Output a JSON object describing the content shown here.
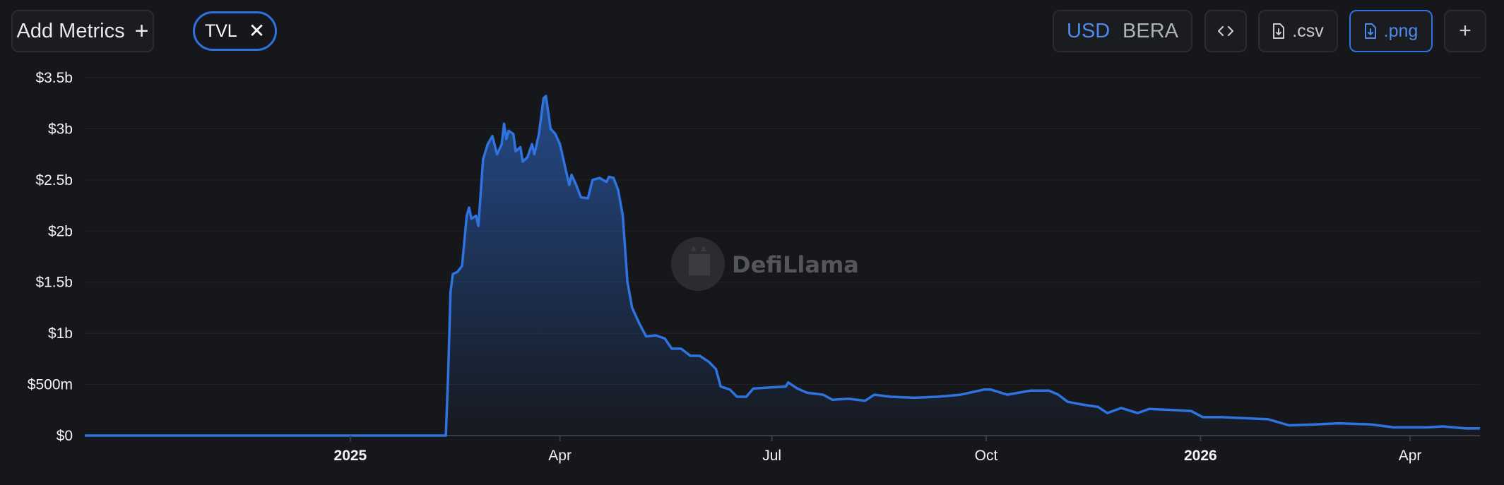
{
  "toolbar": {
    "add_metrics_label": "Add Metrics",
    "add_metrics_icon": "+",
    "chip_label": "TVL",
    "chip_close_icon": "✕",
    "currency_options": [
      "USD",
      "BERA"
    ],
    "currency_selected": "USD",
    "embed_icon": "<>",
    "csv_label": ".csv",
    "png_label": ".png",
    "add_icon": "+"
  },
  "watermark": "DefiLlama",
  "colors": {
    "background": "#16171b",
    "line": "#2f73e0",
    "grid": "#23252a"
  },
  "chart_data": {
    "type": "area",
    "series": [
      {
        "values": [
          [
            "2024-09-09",
            0
          ],
          [
            "2024-12-31",
            0
          ],
          [
            "2025-02-11",
            0
          ],
          [
            "2025-02-12",
            0.6
          ],
          [
            "2025-02-13",
            1.4
          ],
          [
            "2025-02-14",
            1.58
          ],
          [
            "2025-02-16",
            1.6
          ],
          [
            "2025-02-18",
            1.66
          ],
          [
            "2025-02-20",
            2.15
          ],
          [
            "2025-02-21",
            2.23
          ],
          [
            "2025-02-22",
            2.12
          ],
          [
            "2025-02-24",
            2.15
          ],
          [
            "2025-02-25",
            2.05
          ],
          [
            "2025-02-27",
            2.7
          ],
          [
            "2025-03-01",
            2.85
          ],
          [
            "2025-03-03",
            2.93
          ],
          [
            "2025-03-05",
            2.75
          ],
          [
            "2025-03-07",
            2.85
          ],
          [
            "2025-03-08",
            3.05
          ],
          [
            "2025-03-09",
            2.9
          ],
          [
            "2025-03-10",
            2.98
          ],
          [
            "2025-03-12",
            2.95
          ],
          [
            "2025-03-13",
            2.78
          ],
          [
            "2025-03-15",
            2.82
          ],
          [
            "2025-03-16",
            2.68
          ],
          [
            "2025-03-18",
            2.72
          ],
          [
            "2025-03-20",
            2.85
          ],
          [
            "2025-03-21",
            2.75
          ],
          [
            "2025-03-23",
            2.95
          ],
          [
            "2025-03-25",
            3.3
          ],
          [
            "2025-03-26",
            3.32
          ],
          [
            "2025-03-28",
            3.0
          ],
          [
            "2025-03-30",
            2.95
          ],
          [
            "2025-04-01",
            2.85
          ],
          [
            "2025-04-03",
            2.65
          ],
          [
            "2025-04-05",
            2.45
          ],
          [
            "2025-04-06",
            2.55
          ],
          [
            "2025-04-08",
            2.45
          ],
          [
            "2025-04-10",
            2.33
          ],
          [
            "2025-04-13",
            2.32
          ],
          [
            "2025-04-15",
            2.5
          ],
          [
            "2025-04-18",
            2.52
          ],
          [
            "2025-04-21",
            2.48
          ],
          [
            "2025-04-22",
            2.53
          ],
          [
            "2025-04-24",
            2.52
          ],
          [
            "2025-04-26",
            2.4
          ],
          [
            "2025-04-28",
            2.15
          ],
          [
            "2025-04-30",
            1.5
          ],
          [
            "2025-05-02",
            1.25
          ],
          [
            "2025-05-05",
            1.1
          ],
          [
            "2025-05-08",
            0.97
          ],
          [
            "2025-05-12",
            0.98
          ],
          [
            "2025-05-16",
            0.95
          ],
          [
            "2025-05-19",
            0.85
          ],
          [
            "2025-05-23",
            0.85
          ],
          [
            "2025-05-27",
            0.78
          ],
          [
            "2025-05-31",
            0.78
          ],
          [
            "2025-06-04",
            0.72
          ],
          [
            "2025-06-07",
            0.65
          ],
          [
            "2025-06-09",
            0.48
          ],
          [
            "2025-06-13",
            0.45
          ],
          [
            "2025-06-16",
            0.38
          ],
          [
            "2025-06-20",
            0.38
          ],
          [
            "2025-06-23",
            0.46
          ],
          [
            "2025-06-30",
            0.47
          ],
          [
            "2025-07-07",
            0.48
          ],
          [
            "2025-07-08",
            0.52
          ],
          [
            "2025-07-12",
            0.46
          ],
          [
            "2025-07-16",
            0.42
          ],
          [
            "2025-07-23",
            0.4
          ],
          [
            "2025-07-27",
            0.35
          ],
          [
            "2025-08-03",
            0.36
          ],
          [
            "2025-08-10",
            0.34
          ],
          [
            "2025-08-14",
            0.4
          ],
          [
            "2025-08-21",
            0.38
          ],
          [
            "2025-08-31",
            0.37
          ],
          [
            "2025-09-10",
            0.38
          ],
          [
            "2025-09-20",
            0.4
          ],
          [
            "2025-09-30",
            0.45
          ],
          [
            "2025-10-03",
            0.45
          ],
          [
            "2025-10-10",
            0.4
          ],
          [
            "2025-10-20",
            0.44
          ],
          [
            "2025-10-28",
            0.44
          ],
          [
            "2025-11-01",
            0.4
          ],
          [
            "2025-11-05",
            0.33
          ],
          [
            "2025-11-12",
            0.3
          ],
          [
            "2025-11-18",
            0.28
          ],
          [
            "2025-11-22",
            0.22
          ],
          [
            "2025-11-28",
            0.27
          ],
          [
            "2025-12-05",
            0.22
          ],
          [
            "2025-12-10",
            0.26
          ],
          [
            "2025-12-20",
            0.25
          ],
          [
            "2025-12-28",
            0.24
          ],
          [
            "2026-01-02",
            0.18
          ],
          [
            "2026-01-10",
            0.18
          ],
          [
            "2026-01-20",
            0.17
          ],
          [
            "2026-01-30",
            0.16
          ],
          [
            "2026-02-08",
            0.1
          ],
          [
            "2026-02-20",
            0.11
          ],
          [
            "2026-03-01",
            0.12
          ],
          [
            "2026-03-15",
            0.11
          ],
          [
            "2026-03-25",
            0.08
          ],
          [
            "2026-04-08",
            0.08
          ],
          [
            "2026-04-15",
            0.09
          ],
          [
            "2026-04-25",
            0.07
          ],
          [
            "2026-05-01",
            0.07
          ]
        ]
      }
    ],
    "x_ticks": [
      {
        "date": "2025-01-01",
        "label": "2025",
        "bold": true
      },
      {
        "date": "2025-04-01",
        "label": "Apr",
        "bold": false
      },
      {
        "date": "2025-07-01",
        "label": "Jul",
        "bold": false
      },
      {
        "date": "2025-10-01",
        "label": "Oct",
        "bold": false
      },
      {
        "date": "2026-01-01",
        "label": "2026",
        "bold": true
      },
      {
        "date": "2026-04-01",
        "label": "Apr",
        "bold": false
      }
    ],
    "y_ticks": [
      {
        "value": 0,
        "label": "$0"
      },
      {
        "value": 0.5,
        "label": "$500m"
      },
      {
        "value": 1,
        "label": "$1b"
      },
      {
        "value": 1.5,
        "label": "$1.5b"
      },
      {
        "value": 2,
        "label": "$2b"
      },
      {
        "value": 2.5,
        "label": "$2.5b"
      },
      {
        "value": 3,
        "label": "$3b"
      },
      {
        "value": 3.5,
        "label": "$3.5b"
      }
    ],
    "xlim": [
      "2024-09-09",
      "2026-05-01"
    ],
    "ylim": [
      0,
      3.5
    ],
    "y_unit": "USD billions",
    "grid": true,
    "legend": "none"
  }
}
